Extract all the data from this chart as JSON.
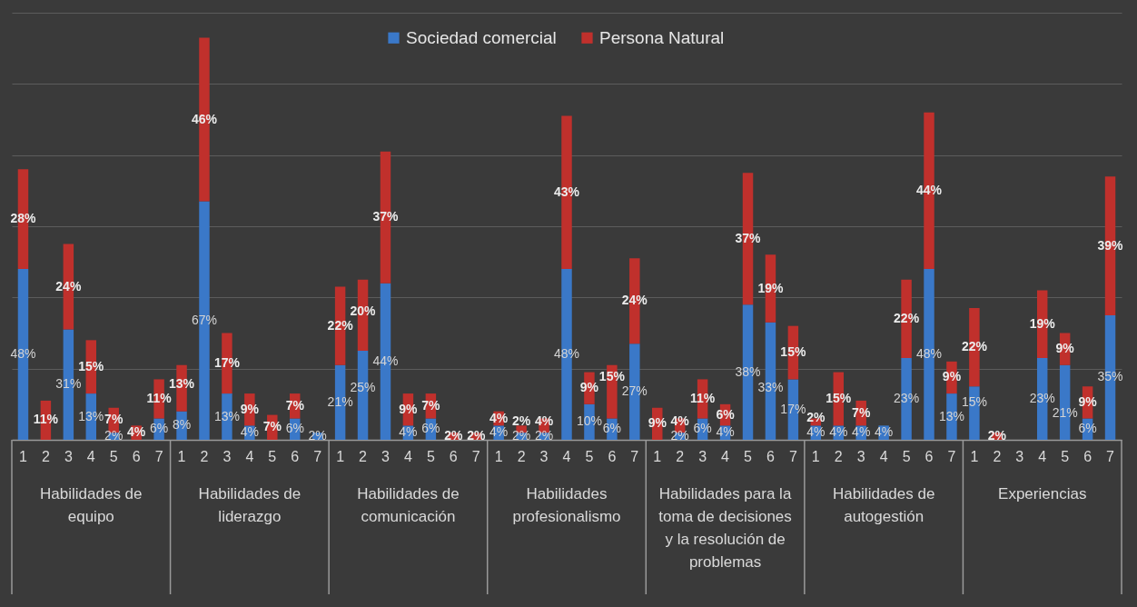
{
  "chart_data": {
    "type": "bar",
    "stacked": true,
    "legend": "top",
    "grid": "y",
    "ylim": [
      0,
      120
    ],
    "yticks": [
      {
        "value": 0,
        "label": null
      },
      {
        "value": 20,
        "label": null
      },
      {
        "value": 40,
        "label": null
      },
      {
        "value": 60,
        "label": null
      },
      {
        "value": 80,
        "label": null
      },
      {
        "value": 100,
        "label": null
      },
      {
        "value": 120,
        "label": null
      }
    ],
    "categories": [
      "1",
      "2",
      "3",
      "4",
      "5",
      "6",
      "7",
      "1",
      "2",
      "3",
      "4",
      "5",
      "6",
      "7",
      "1",
      "2",
      "3",
      "4",
      "5",
      "6",
      "7",
      "1",
      "2",
      "3",
      "4",
      "5",
      "6",
      "7",
      "1",
      "2",
      "3",
      "4",
      "5",
      "6",
      "7",
      "1",
      "2",
      "3",
      "4",
      "5",
      "6",
      "7",
      "1",
      "2",
      "3",
      "4",
      "5",
      "6",
      "7"
    ],
    "annotations": [
      "Habilidades de equipo",
      "Habilidades de liderazgo",
      "Habilidades de comunicación",
      "Habilidades profesionalismo",
      "Habilidades para la toma de decisiones y la resolución de problemas",
      "Habilidades de autogestión",
      "Experiencias"
    ],
    "series": [
      {
        "name": "Sociedad comercial",
        "color": "#3a78c8",
        "values": [
          48,
          0,
          31,
          13,
          2,
          0,
          6,
          8,
          67,
          13,
          4,
          0,
          6,
          2,
          21,
          25,
          44,
          4,
          6,
          0,
          0,
          4,
          2,
          2,
          48,
          10,
          6,
          27,
          0,
          2,
          6,
          4,
          38,
          33,
          17,
          4,
          4,
          4,
          4,
          23,
          48,
          13,
          15,
          0,
          0,
          23,
          21,
          6,
          35
        ],
        "value_labels": [
          "48%",
          null,
          "31%",
          "13%",
          "2%",
          null,
          "6%",
          "8%",
          "67%",
          "13%",
          "4%",
          null,
          "6%",
          "2%",
          "21%",
          "25%",
          "44%",
          "4%",
          "6%",
          null,
          null,
          "4%",
          "2%",
          "2%",
          "48%",
          "10%",
          "6%",
          "27%",
          null,
          "2%",
          "6%",
          "4%",
          "38%",
          "33%",
          "17%",
          "4%",
          "4%",
          "4%",
          "4%",
          "23%",
          "48%",
          "13%",
          "15%",
          null,
          null,
          "23%",
          "21%",
          "6%",
          "35%"
        ]
      },
      {
        "name": "Persona Natural",
        "color": "#c0302c",
        "values": [
          28,
          11,
          24,
          15,
          7,
          4,
          11,
          13,
          46,
          17,
          9,
          7,
          7,
          0,
          22,
          20,
          37,
          9,
          7,
          2,
          2,
          4,
          2,
          4,
          43,
          9,
          15,
          24,
          9,
          4,
          11,
          6,
          37,
          19,
          15,
          2,
          15,
          7,
          0,
          22,
          44,
          9,
          22,
          2,
          0,
          19,
          9,
          9,
          39
        ],
        "value_labels": [
          "28%",
          "11%",
          "24%",
          "15%",
          "7%",
          "4%",
          "11%",
          "13%",
          "46%",
          "17%",
          "9%",
          "7%",
          "7%",
          null,
          "22%",
          "20%",
          "37%",
          "9%",
          "7%",
          "2%",
          "2%",
          "4%",
          "2%",
          "4%",
          "43%",
          "9%",
          "15%",
          "24%",
          "9%",
          "4%",
          "11%",
          "6%",
          "37%",
          "19%",
          "15%",
          "2%",
          "15%",
          "7%",
          null,
          "22%",
          "44%",
          "9%",
          "22%",
          "2%",
          null,
          "19%",
          "9%",
          "9%",
          "39%"
        ]
      }
    ]
  }
}
